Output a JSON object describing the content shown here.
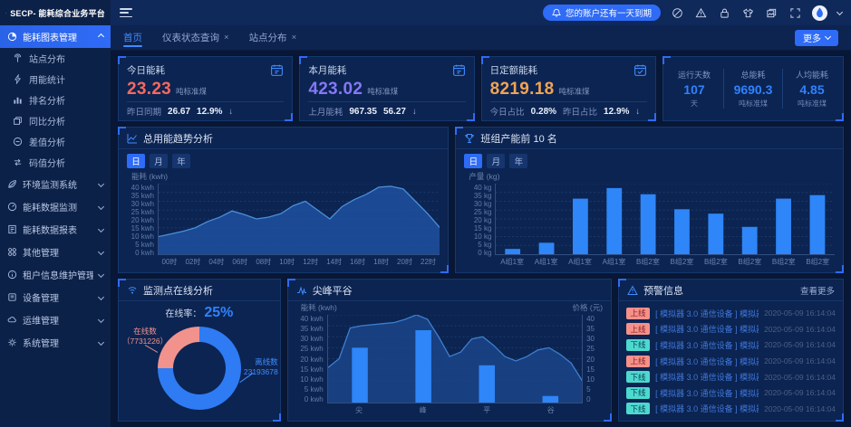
{
  "app": {
    "logo": "SECP- 能耗综合业务平台"
  },
  "header": {
    "notice": "您的账户还有一天到期",
    "more": "更多"
  },
  "tabs": [
    {
      "label": "首页"
    },
    {
      "label": "仪表状态查询",
      "close": "×"
    },
    {
      "label": "站点分布",
      "close": "×"
    }
  ],
  "sidebar": {
    "group_main": "能耗图表管理",
    "sub": [
      "站点分布",
      "用能统计",
      "排名分析",
      "同比分析",
      "差值分析",
      "码值分析"
    ],
    "groups": [
      "环境监测系统",
      "能耗数据监测",
      "能耗数据报表",
      "其他管理",
      "租户信息维护管理",
      "设备管理",
      "运维管理",
      "系统管理"
    ]
  },
  "cards": [
    {
      "title": "今日能耗",
      "value": "23.23",
      "unit": "吨标准煤",
      "color": "#f5695e",
      "foot": [
        {
          "l": "昨日同期",
          "v": "26.67"
        },
        {
          "l": "",
          "v": "12.9%"
        }
      ],
      "arrow": "↓"
    },
    {
      "title": "本月能耗",
      "value": "423.02",
      "unit": "吨标准煤",
      "color": "#8677f8",
      "foot": [
        {
          "l": "上月能耗",
          "v": "967.35"
        },
        {
          "l": "",
          "v": "56.27"
        }
      ],
      "arrow": "↓"
    },
    {
      "title": "日定额能耗",
      "value": "8219.18",
      "unit": "吨标准煤",
      "color": "#f0a455",
      "foot": [
        {
          "l": "今日占比",
          "v": "0.28%"
        },
        {
          "l": "昨日占比",
          "v": "12.9%"
        }
      ],
      "arrow": "↓"
    }
  ],
  "summary": [
    {
      "label": "运行天数",
      "value": "107",
      "unit": "天"
    },
    {
      "label": "总能耗",
      "value": "9690.3",
      "unit": "吨标准煤"
    },
    {
      "label": "人均能耗",
      "value": "4.85",
      "unit": "吨标准煤"
    }
  ],
  "alerts": {
    "title": "预警信息",
    "more": "查看更多",
    "items": [
      {
        "status": "上线",
        "type": "up",
        "text": "[ 模拟器 3.0 通信设备 ] 模拟器 3.0...",
        "time": "2020-05-09 16:14:04"
      },
      {
        "status": "上线",
        "type": "up",
        "text": "[ 模拟器 3.0 通信设备 ] 模拟器 3.0...",
        "time": "2020-05-09 16:14:04"
      },
      {
        "status": "下线",
        "type": "down",
        "text": "[ 模拟器 3.0 通信设备 ] 模拟器 3.0...",
        "time": "2020-05-09 16:14:04"
      },
      {
        "status": "上线",
        "type": "up",
        "text": "[ 模拟器 3.0 通信设备 ] 模拟器 3.0...",
        "time": "2020-05-09 16:14:04"
      },
      {
        "status": "下线",
        "type": "down",
        "text": "[ 模拟器 3.0 通信设备 ] 模拟器 3.0...",
        "time": "2020-05-09 16:14:04"
      },
      {
        "status": "下线",
        "type": "down",
        "text": "[ 模拟器 3.0 通信设备 ] 模拟器 3.0...",
        "time": "2020-05-09 16:14:04"
      },
      {
        "status": "下线",
        "type": "down",
        "text": "[ 模拟器 3.0 通信设备 ] 模拟器 3.0...",
        "time": "2020-05-09 16:14:04"
      }
    ]
  },
  "chart_data": [
    {
      "id": "trend",
      "type": "area",
      "title": "总用能趋势分析",
      "tabs": [
        "日",
        "月",
        "年"
      ],
      "active_tab": "日",
      "ylabel": "能耗 (kwh)",
      "ylim": [
        0,
        40
      ],
      "yticks": [
        "40 kwh",
        "35 kwh",
        "30 kwh",
        "25 kwh",
        "20 kwh",
        "15 kwh",
        "10 kwh",
        "5 kwh",
        "0 kwh"
      ],
      "x": [
        "00时",
        "02时",
        "04时",
        "06时",
        "08时",
        "10时",
        "12时",
        "14时",
        "16时",
        "18时",
        "20时",
        "22时"
      ],
      "values": [
        10,
        11.5,
        13,
        15,
        18.5,
        21,
        24.5,
        22.5,
        20,
        21,
        23,
        27.5,
        30,
        25,
        20,
        27,
        31,
        34,
        38,
        38.5,
        37,
        30,
        23,
        15
      ],
      "line_color": "#4a8fd8",
      "fill_color": "rgba(32,80,160,0.85)"
    },
    {
      "id": "capacity",
      "type": "bar",
      "title": "班组产能前 10 名",
      "tabs": [
        "日",
        "月",
        "年"
      ],
      "active_tab": "日",
      "ylabel": "产量 (kg)",
      "ylim": [
        0,
        40
      ],
      "yticks": [
        "40 kg",
        "35 kg",
        "30 kg",
        "25 kg",
        "20 kg",
        "15 kg",
        "10 kg",
        "5 kg",
        "0 kg"
      ],
      "categories": [
        "A组1室",
        "A组1室",
        "A组1室",
        "A组1室",
        "B组2室",
        "B组2室",
        "B组2室",
        "B组2室",
        "B组2室",
        "B组2室"
      ],
      "values": [
        3,
        6.5,
        31.5,
        37.5,
        34,
        25.5,
        23,
        15.5,
        31.5,
        33.5
      ],
      "bar_color": "#2e86f8"
    },
    {
      "id": "online",
      "type": "pie",
      "title": "监测点在线分析",
      "rate_label": "在线率：",
      "rate_value": "25%",
      "slices": [
        {
          "name": "在线数",
          "display": "（7731226）",
          "value": 7731226,
          "percent": 25,
          "color": "#f2928d"
        },
        {
          "name": "离线数",
          "display": "23193678",
          "value": 23193678,
          "percent": 75,
          "color": "#2e7bf3"
        }
      ]
    },
    {
      "id": "peak",
      "type": "bar+area",
      "title": "尖峰平谷",
      "ylabel_left": "能耗 (kwh)",
      "ylabel_right": "价格 (元)",
      "ylim": [
        0,
        40
      ],
      "yticks_left": [
        "40 kwh",
        "35 kwh",
        "30 kwh",
        "25 kwh",
        "20 kwh",
        "15 kwh",
        "10 kwh",
        "5 kwh",
        "0 kwh"
      ],
      "yticks_right": [
        "40",
        "35",
        "30",
        "25",
        "20",
        "15",
        "10",
        "5",
        "0"
      ],
      "categories": [
        "尖",
        "峰",
        "平",
        "谷"
      ],
      "bar_values": [
        25,
        33,
        17,
        3
      ],
      "area_values": [
        16,
        20,
        34,
        35,
        35.5,
        36,
        36.5,
        38,
        40,
        38,
        30,
        21,
        23,
        29,
        30,
        26,
        21,
        19,
        21,
        24,
        25,
        22,
        18,
        10
      ],
      "bar_color": "#2e86f8",
      "line_color": "#3c7fd0",
      "fill_color": "rgba(28,70,140,0.8)"
    }
  ]
}
